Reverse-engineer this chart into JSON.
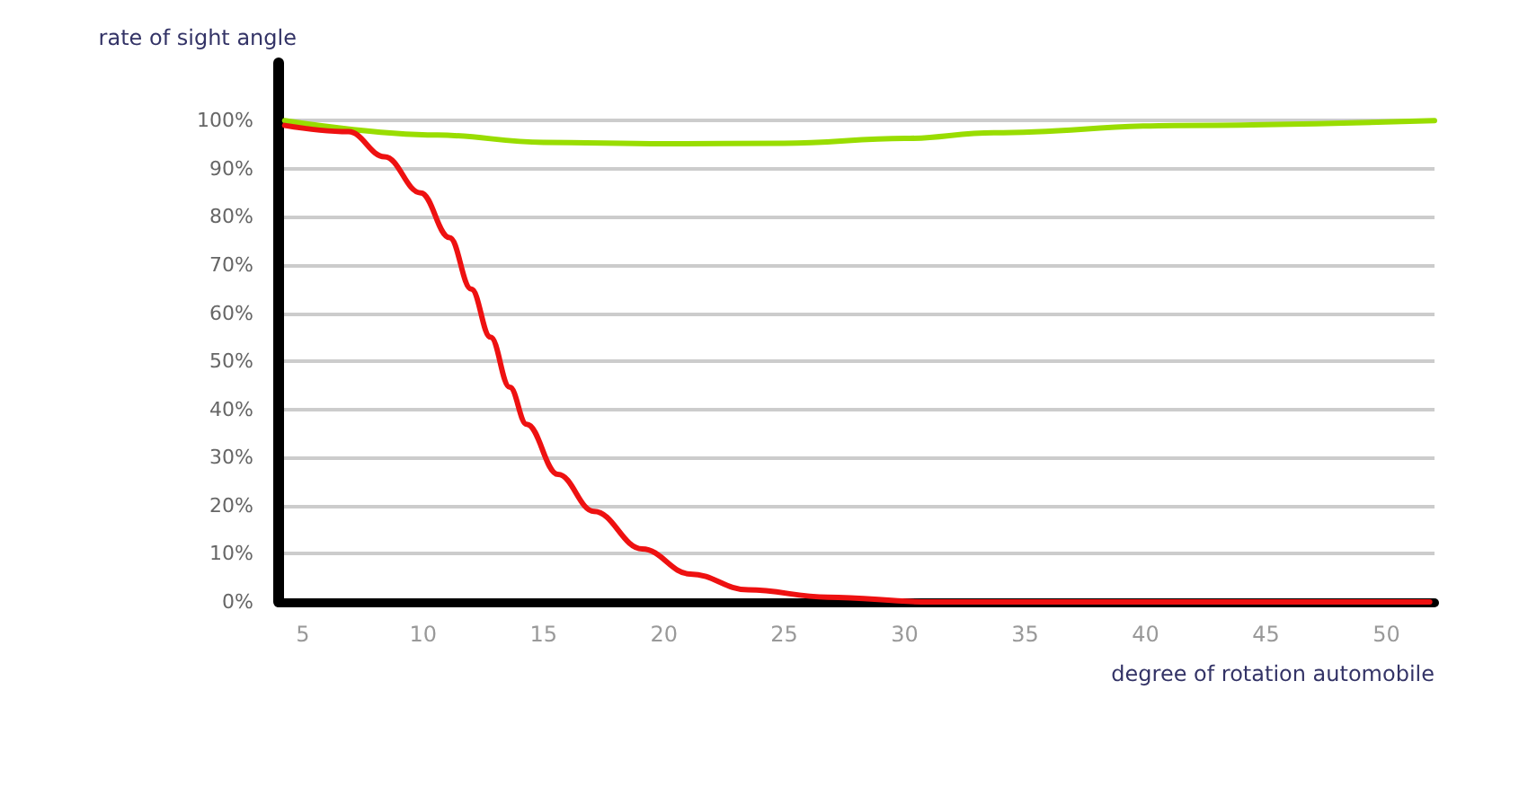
{
  "chart_data": {
    "type": "line",
    "ylabel": "rate of sight angle",
    "xlabel": "degree of rotation automobile",
    "xlim": [
      4,
      52
    ],
    "xticks": [
      5,
      10,
      15,
      20,
      25,
      30,
      35,
      40,
      45,
      50
    ],
    "ylim": [
      0,
      112
    ],
    "yticks": [
      {
        "value": 0,
        "label": "0%"
      },
      {
        "value": 10,
        "label": "10%"
      },
      {
        "value": 20,
        "label": "20%"
      },
      {
        "value": 30,
        "label": "30%"
      },
      {
        "value": 40,
        "label": "40%"
      },
      {
        "value": 50,
        "label": "50%"
      },
      {
        "value": 60,
        "label": "60%"
      },
      {
        "value": 70,
        "label": "70%"
      },
      {
        "value": 80,
        "label": "80%"
      },
      {
        "value": 90,
        "label": "90%"
      },
      {
        "value": 100,
        "label": "100%"
      }
    ],
    "grid": "y",
    "marker": "none",
    "line_style": "solid",
    "series": [
      {
        "color": "#99dd00",
        "x": [
          4.25,
          10.6,
          15,
          20,
          25,
          30,
          33.7,
          41.2,
          52
        ],
        "values": [
          100,
          97,
          95.5,
          95.2,
          95.3,
          96.3,
          97.5,
          99,
          100
        ]
      },
      {
        "color": "#ee1111",
        "x": [
          4.25,
          6.9,
          8.4,
          9.9,
          11.1,
          12,
          12.8,
          13.6,
          14.3,
          15.6,
          17.1,
          19.1,
          21.1,
          23.5,
          26.8,
          31,
          51.8
        ],
        "values": [
          99,
          97.7,
          92.5,
          85,
          75.7,
          65,
          55,
          44.6,
          36.9,
          26.5,
          18.8,
          11,
          5.8,
          2.5,
          1,
          0,
          0
        ]
      }
    ]
  }
}
